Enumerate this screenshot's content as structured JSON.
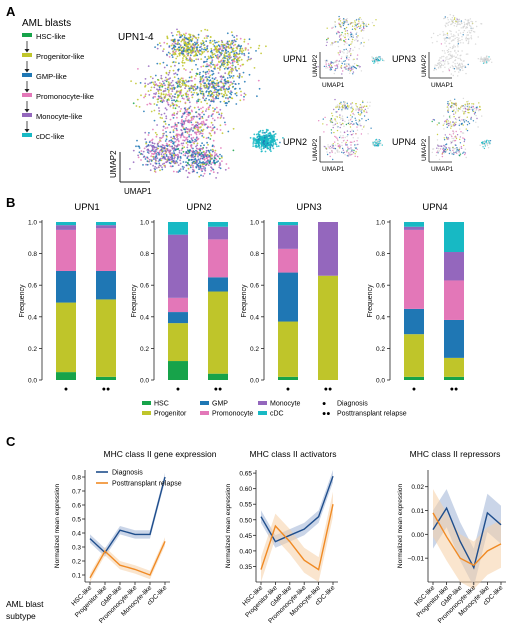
{
  "panels": {
    "a": "A",
    "b": "B",
    "c": "C"
  },
  "colors": {
    "hsc": "#17a34a",
    "progenitor": "#bfc52a",
    "gmp": "#1f77b4",
    "promonocyte": "#e377b8",
    "monocyte": "#9467bd",
    "cdc": "#17b9c4",
    "other": "#d4d4d4",
    "diag_line": "#1f4e8c",
    "diag_band": "#9fb3d6",
    "relapse_line": "#f08a24",
    "relapse_band": "#f5cfa6"
  },
  "panel_a": {
    "legend_title": "AML blasts",
    "hierarchy": [
      "HSC-like",
      "Progenitor-like",
      "GMP-like",
      "Promonocyte-like",
      "Monocyte-like",
      "cDC-like"
    ],
    "main_title": "UPN1-4",
    "xlabel": "UMAP1",
    "ylabel": "UMAP2",
    "small_plots": [
      {
        "label": "UPN1",
        "highlight": true
      },
      {
        "label": "UPN3",
        "highlight": false
      },
      {
        "label": "UPN2",
        "highlight": true
      },
      {
        "label": "UPN4",
        "highlight": true
      }
    ]
  },
  "chart_data": [
    {
      "type": "bar",
      "stacked": true,
      "ylabel": "Frequency",
      "ylim": [
        0,
        1
      ],
      "yticks": [
        "0.0",
        "0.2",
        "0.4",
        "0.6",
        "0.8",
        "1.0"
      ],
      "stack_order": [
        "HSC",
        "Progenitor",
        "GMP",
        "Promonocyte",
        "Monocyte",
        "cDC"
      ],
      "panels": [
        {
          "title": "UPN1",
          "bars": [
            {
              "marker": "●",
              "values": [
                0.05,
                0.44,
                0.2,
                0.26,
                0.03,
                0.02
              ]
            },
            {
              "marker": "●●",
              "values": [
                0.02,
                0.49,
                0.18,
                0.27,
                0.02,
                0.02
              ]
            }
          ]
        },
        {
          "title": "UPN2",
          "bars": [
            {
              "marker": "●",
              "values": [
                0.12,
                0.24,
                0.07,
                0.09,
                0.4,
                0.08
              ]
            },
            {
              "marker": "●●",
              "values": [
                0.04,
                0.52,
                0.09,
                0.24,
                0.08,
                0.03
              ]
            }
          ]
        },
        {
          "title": "UPN3",
          "bars": [
            {
              "marker": "●",
              "values": [
                0.02,
                0.35,
                0.31,
                0.15,
                0.15,
                0.02
              ]
            },
            {
              "marker": "●●",
              "values": [
                0.0,
                0.66,
                0.0,
                0.0,
                0.34,
                0.0
              ]
            }
          ]
        },
        {
          "title": "UPN4",
          "bars": [
            {
              "marker": "●",
              "values": [
                0.02,
                0.27,
                0.16,
                0.5,
                0.02,
                0.03
              ]
            },
            {
              "marker": "●●",
              "values": [
                0.02,
                0.12,
                0.24,
                0.25,
                0.18,
                0.19
              ]
            }
          ]
        }
      ],
      "legend": [
        "HSC",
        "GMP",
        "Monocyte",
        "Progenitor",
        "Promonocyte",
        "cDC"
      ],
      "marker_legend": [
        {
          "marker": "●",
          "label": "Diagnosis"
        },
        {
          "marker": "●●",
          "label": "Posttransplant relapse"
        }
      ]
    },
    {
      "type": "line",
      "categories": [
        "HSC-like",
        "Progenitor-like",
        "GMP-like",
        "Promonocyte-like",
        "Monocyte-like",
        "cDC-like"
      ],
      "ylabel": "Normalized mean expression",
      "category_caption": "AML blast subtype",
      "panels": [
        {
          "title": "MHC class II gene expression",
          "ylim": [
            0.05,
            0.85
          ],
          "yticks": [
            "0.1",
            "0.2",
            "0.3",
            "0.4",
            "0.5",
            "0.6",
            "0.7",
            "0.8"
          ],
          "series": [
            {
              "name": "Diagnosis",
              "values": [
                0.36,
                0.26,
                0.42,
                0.39,
                0.39,
                0.8
              ],
              "band": 0.03
            },
            {
              "name": "Posttransplant relapse",
              "values": [
                0.08,
                0.27,
                0.17,
                0.14,
                0.1,
                0.34
              ],
              "band": 0.03
            }
          ]
        },
        {
          "title": "MHC class II activators",
          "ylim": [
            0.3,
            0.66
          ],
          "yticks": [
            "0.35",
            "0.40",
            "0.45",
            "0.50",
            "0.55",
            "0.60",
            "0.65"
          ],
          "series": [
            {
              "values": [
                0.51,
                0.43,
                0.45,
                0.47,
                0.51,
                0.64
              ],
              "band": 0.02
            },
            {
              "values": [
                0.34,
                0.48,
                0.43,
                0.37,
                0.34,
                0.55
              ],
              "band": 0.04
            }
          ]
        },
        {
          "title": "MHC class II repressors",
          "ylim": [
            -0.02,
            0.027
          ],
          "yticks": [
            "−0.01",
            "0.00",
            "0.01",
            "0.02"
          ],
          "series": [
            {
              "values": [
                0.002,
                0.011,
                -0.003,
                -0.014,
                0.009,
                0.004
              ],
              "band": 0.008
            },
            {
              "values": [
                0.009,
                -0.001,
                -0.01,
                -0.013,
                -0.007,
                -0.004
              ],
              "band": 0.01
            }
          ]
        }
      ]
    }
  ]
}
